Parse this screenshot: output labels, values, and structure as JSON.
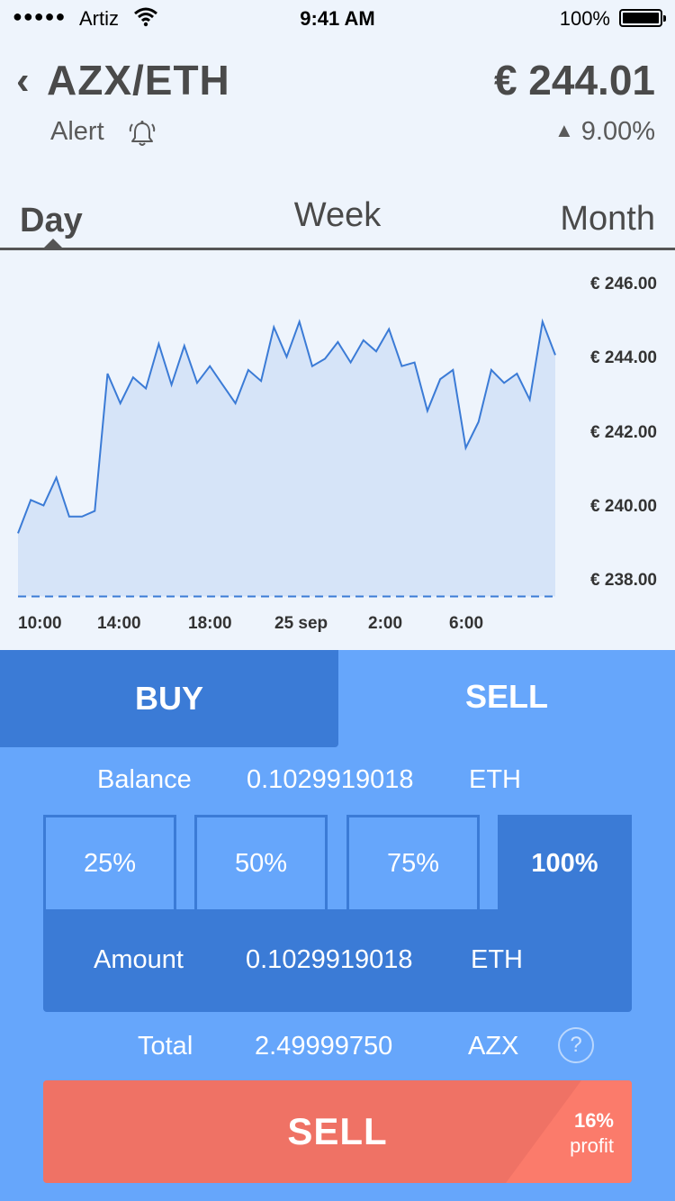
{
  "status_bar": {
    "carrier": "Artiz",
    "time": "9:41 AM",
    "battery": "100%"
  },
  "header": {
    "pair": "AZX/ETH",
    "price": "€ 244.01",
    "alert_label": "Alert",
    "change": "9.00%",
    "change_direction": "up"
  },
  "tabs": {
    "items": [
      "Day",
      "Week",
      "Month"
    ],
    "selected": "Day"
  },
  "chart_data": {
    "type": "area",
    "y_tick_labels": [
      "€ 246.00",
      "€ 244.00",
      "€ 242.00",
      "€ 240.00",
      "€ 238.00"
    ],
    "x_tick_labels": [
      "10:00",
      "14:00",
      "18:00",
      "25 sep",
      "2:00",
      "6:00"
    ],
    "ylim": [
      237.6,
      246.6
    ],
    "baseline": 237.6,
    "line_color": "#3b7bd6",
    "fill_color": "#d6e4f8",
    "values": [
      239.3,
      240.2,
      240.05,
      240.8,
      239.75,
      239.75,
      239.9,
      243.6,
      242.8,
      243.5,
      243.2,
      244.4,
      243.3,
      244.35,
      243.35,
      243.8,
      243.3,
      242.8,
      243.7,
      243.4,
      244.85,
      244.05,
      245.0,
      243.8,
      244.0,
      244.45,
      243.9,
      244.5,
      244.2,
      244.8,
      243.8,
      243.9,
      242.6,
      243.45,
      243.7,
      241.6,
      242.3,
      243.7,
      243.35,
      243.6,
      242.9,
      245.0,
      244.1
    ]
  },
  "trade": {
    "buy_tab": "BUY",
    "sell_tab": "SELL",
    "selected_tab": "SELL",
    "balance_label": "Balance",
    "balance_value": "0.1029919018",
    "balance_unit": "ETH",
    "percent_options": [
      "25%",
      "50%",
      "75%",
      "100%"
    ],
    "selected_percent": "100%",
    "amount_label": "Amount",
    "amount_value": "0.1029919018",
    "amount_unit": "ETH",
    "total_label": "Total",
    "total_value": "2.49999750",
    "total_unit": "AZX",
    "help_glyph": "?",
    "sell_button": "SELL",
    "profit_percent": "16%",
    "profit_label": "profit"
  },
  "colors": {
    "panel": "#66a6fb",
    "panel_dark": "#3b7bd6",
    "sell_button": "#ef7265",
    "background": "#eef4fc"
  }
}
